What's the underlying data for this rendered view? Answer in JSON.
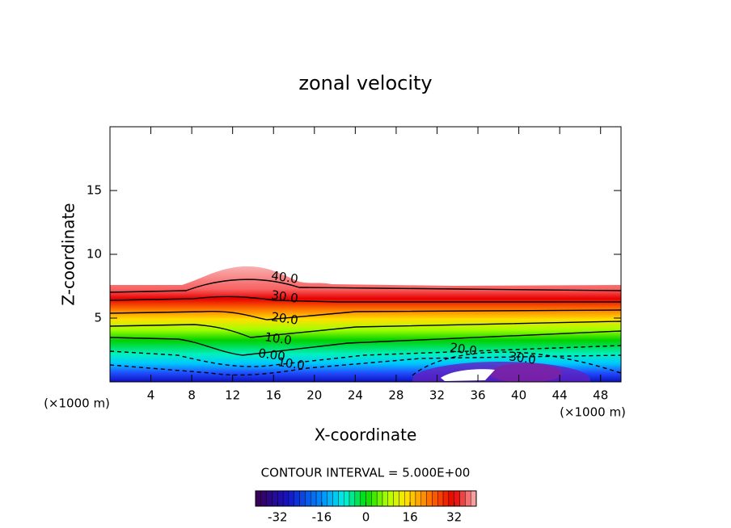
{
  "chart_data": {
    "type": "contour",
    "title": "zonal velocity",
    "xlabel": "X-coordinate",
    "ylabel": "Z-coordinate",
    "x_unit_label": "(×1000 m)",
    "xlim": [
      0,
      50
    ],
    "ylim": [
      0,
      20
    ],
    "xticks": [
      4,
      8,
      12,
      16,
      20,
      24,
      28,
      32,
      36,
      40,
      44,
      48
    ],
    "yticks": [
      5,
      10,
      15
    ],
    "contour_labels": [
      "40.0",
      "30.0",
      "20.0",
      "10.0",
      "0.00",
      "10.0",
      "20.0",
      "30.0"
    ],
    "contour_interval_label": "CONTOUR INTERVAL = 5.000E+00",
    "colorbar": {
      "clim": [
        -40,
        40
      ],
      "ticks": [
        -32,
        -16,
        0,
        16,
        32
      ]
    }
  }
}
